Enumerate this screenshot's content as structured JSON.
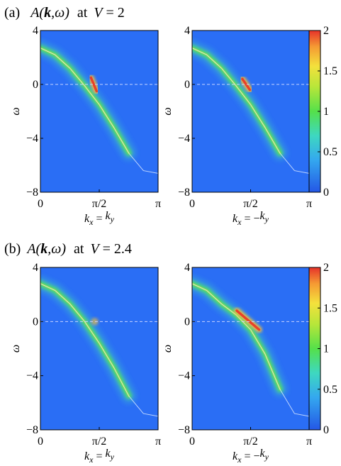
{
  "chart_data": [
    {
      "type": "heatmap",
      "panel_label": "(a)",
      "title": "A(k,ω) at V = 2",
      "title_parts": {
        "label": "(a)",
        "func": "A(",
        "kvec": "k",
        "rest": ",ω)",
        "at": "at",
        "var": "V",
        "eq": " = 2"
      },
      "ylabel": "ω",
      "ylim": [
        -8,
        4
      ],
      "yticks": [
        "4",
        "0",
        "-4",
        "-8"
      ],
      "xlim": [
        0,
        3.1416
      ],
      "xticks": [
        "0",
        "π/2",
        "π"
      ],
      "fermi_level_line": 0,
      "panels": [
        {
          "xlabel": "kx = ky",
          "xlabel_parts": {
            "k": "k",
            "sub1": "x",
            "eq": " = ",
            "k2": "k",
            "sub2": "y"
          },
          "band": {
            "k": [
              0,
              0.39,
              0.79,
              1.18,
              1.57,
              1.96,
              2.36,
              2.75,
              3.14
            ],
            "omega": [
              2.7,
              2.2,
              1.2,
              -0.1,
              -1.5,
              -3.2,
              -5.1,
              -6.4,
              -6.6
            ]
          },
          "intense_region": {
            "k": [
              1.35,
              1.5
            ],
            "omega": [
              0.5,
              -0.5
            ],
            "max_value": 2
          }
        },
        {
          "xlabel": "kx = -ky",
          "xlabel_parts": {
            "k": "k",
            "sub1": "x",
            "eq": " = −",
            "k2": "k",
            "sub2": "y"
          },
          "band": {
            "k": [
              0,
              0.39,
              0.79,
              1.18,
              1.57,
              1.96,
              2.36,
              2.75,
              3.14
            ],
            "omega": [
              2.7,
              2.2,
              1.2,
              -0.1,
              -1.5,
              -3.2,
              -5.1,
              -6.4,
              -6.6
            ]
          },
          "intense_region": {
            "k": [
              1.35,
              1.55
            ],
            "omega": [
              0.4,
              -0.4
            ],
            "max_value": 2
          }
        }
      ],
      "colorbar": {
        "ticks": [
          "2",
          "1.5",
          "1",
          "0.5",
          "0"
        ],
        "range": [
          0,
          2
        ]
      }
    },
    {
      "type": "heatmap",
      "panel_label": "(b)",
      "title": "A(k,ω) at V = 2.4",
      "title_parts": {
        "label": "(b)",
        "func": "A(",
        "kvec": "k",
        "rest": ",ω)",
        "at": "at",
        "var": "V",
        "eq": " = 2.4"
      },
      "ylabel": "ω",
      "ylim": [
        -8,
        4
      ],
      "yticks": [
        "4",
        "0",
        "-4",
        "-8"
      ],
      "xlim": [
        0,
        3.1416
      ],
      "xticks": [
        "0",
        "π/2",
        "π"
      ],
      "fermi_level_line": 0,
      "panels": [
        {
          "xlabel": "kx = ky",
          "xlabel_parts": {
            "k": "k",
            "sub1": "x",
            "eq": " = ",
            "k2": "k",
            "sub2": "y"
          },
          "band": {
            "k": [
              0,
              0.39,
              0.79,
              1.18,
              1.57,
              1.96,
              2.36,
              2.75,
              3.14
            ],
            "omega": [
              2.8,
              2.3,
              1.3,
              0.0,
              -1.6,
              -3.4,
              -5.5,
              -6.8,
              -7.0
            ]
          },
          "intense_region": null
        },
        {
          "xlabel": "kx = -ky",
          "xlabel_parts": {
            "k": "k",
            "sub1": "x",
            "eq": " = −",
            "k2": "k",
            "sub2": "y"
          },
          "band": {
            "k": [
              0,
              0.39,
              0.79,
              1.18,
              1.57,
              1.96,
              2.36,
              2.75,
              3.14
            ],
            "omega": [
              2.8,
              2.3,
              1.3,
              0.5,
              -0.6,
              -2.4,
              -5.0,
              -6.8,
              -7.0
            ]
          },
          "intense_region": {
            "k": [
              1.2,
              1.8
            ],
            "omega": [
              0.8,
              -0.6
            ],
            "max_value": 2
          }
        }
      ],
      "colorbar": {
        "ticks": [
          "2",
          "1.5",
          "1",
          "0.5",
          "0"
        ],
        "range": [
          0,
          2
        ]
      }
    }
  ],
  "colors": {
    "background_blue": "#2a6ef5",
    "band_glow": "#4bd67a",
    "band_core": "#9be03a",
    "hot": "#e8402a",
    "warm": "#f5c03a",
    "dashed_line": "#c8d4ff",
    "thin_band": "#d8e8ff"
  }
}
